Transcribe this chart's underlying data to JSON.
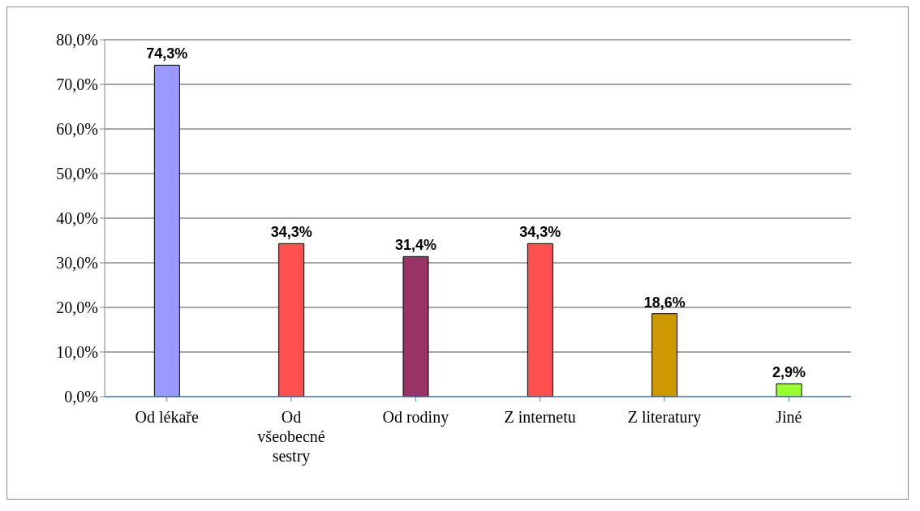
{
  "chart_data": {
    "type": "bar",
    "categories": [
      "Od lékaře",
      "Od všeobecné sestry",
      "Od rodiny",
      "Z internetu",
      "Z literatury",
      "Jiné"
    ],
    "values": [
      74.3,
      34.3,
      31.4,
      34.3,
      18.6,
      2.9
    ],
    "colors": [
      "#9999ff",
      "#ff5050",
      "#993366",
      "#ff5050",
      "#cc9900",
      "#99ff33"
    ],
    "value_labels": [
      "74,3%",
      "34,3%",
      "31,4%",
      "34,3%",
      "18,6%",
      "2,9%"
    ],
    "ylim": [
      0,
      80
    ],
    "yticks": [
      {
        "value": 0,
        "label": "0,0%"
      },
      {
        "value": 10,
        "label": "10,0%"
      },
      {
        "value": 20,
        "label": "20,0%"
      },
      {
        "value": 30,
        "label": "30,0%"
      },
      {
        "value": 40,
        "label": "40,0%"
      },
      {
        "value": 50,
        "label": "50,0%"
      },
      {
        "value": 60,
        "label": "60,0%"
      },
      {
        "value": 70,
        "label": "70,0%"
      },
      {
        "value": 80,
        "label": "80,0%"
      }
    ],
    "grid": "y",
    "legend": false
  }
}
